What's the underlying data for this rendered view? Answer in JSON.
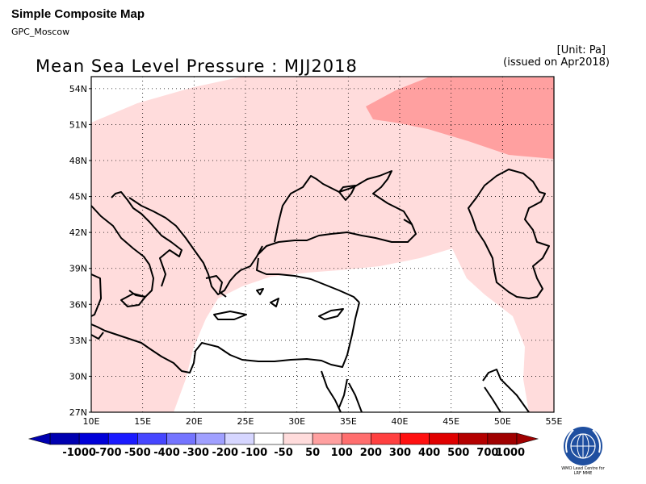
{
  "header": {
    "title": "Simple Composite Map",
    "subtitle": "GPC_Moscow"
  },
  "chart": {
    "title": "Mean Sea Level Pressure : MJJ2018",
    "unit": "[Unit: Pa]",
    "issued": "(issued on Apr2018)",
    "lon_ticks": [
      "10E",
      "15E",
      "20E",
      "25E",
      "30E",
      "35E",
      "40E",
      "45E",
      "50E",
      "55E"
    ],
    "lat_ticks": [
      "27N",
      "30N",
      "33N",
      "36N",
      "39N",
      "42N",
      "45N",
      "48N",
      "51N",
      "54N"
    ],
    "lon_range": [
      10,
      55
    ],
    "lat_range": [
      27,
      55
    ],
    "grid": "dotted"
  },
  "colorbar": {
    "labels": [
      "-1000",
      "-700",
      "-500",
      "-400",
      "-300",
      "-200",
      "-100",
      "-50",
      "50",
      "100",
      "200",
      "300",
      "400",
      "500",
      "700",
      "1000"
    ],
    "colors": [
      "#0000b0",
      "#0000d8",
      "#1a1aff",
      "#4646ff",
      "#7474ff",
      "#a0a0ff",
      "#d6d6ff",
      "#ffffff",
      "#ffdcdc",
      "#ffa0a0",
      "#ff6e6e",
      "#ff4040",
      "#ff1010",
      "#e00000",
      "#b40000",
      "#a00000"
    ]
  },
  "legend_colors": {
    "pos_50_100": "#ffdcdc",
    "pos_100_200": "#ffa0a0"
  },
  "logo": {
    "caption": "WMO Lead Centre for LRF MME"
  }
}
